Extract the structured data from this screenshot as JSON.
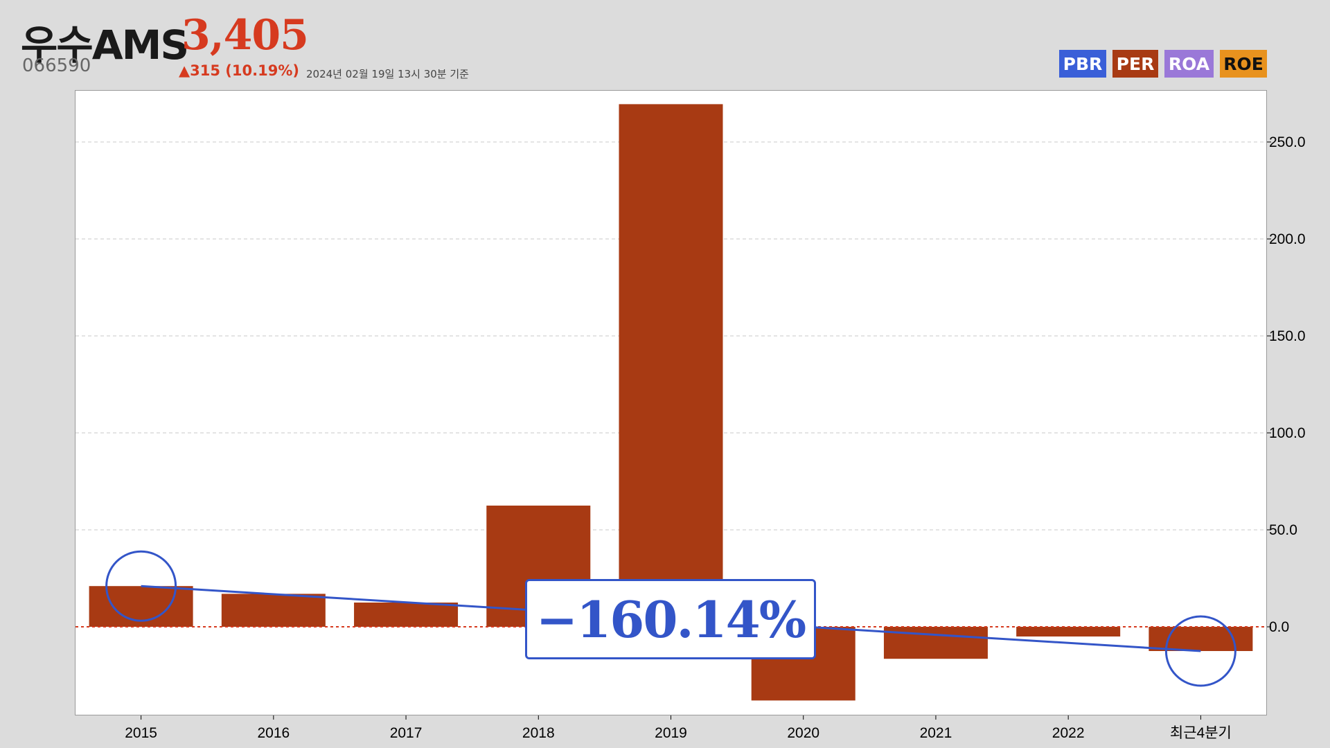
{
  "header": {
    "company": "우수AMS",
    "price": "3,405",
    "code": "066590",
    "change": "▲315 (10.19%)",
    "date": "2024년 02월 19일 13시 30분 기준"
  },
  "legend": [
    {
      "label": "PBR",
      "color": "#3a5fd8"
    },
    {
      "label": "PER",
      "color": "#a83a13"
    },
    {
      "label": "ROA",
      "color": "#9a78d8"
    },
    {
      "label": "ROE",
      "color": "#e8921e"
    }
  ],
  "callout": {
    "text": "−160.14%"
  },
  "colors": {
    "bar": "#a83a13",
    "accent": "#3355c8",
    "zero_line": "#d63a1f"
  },
  "chart_data": {
    "type": "bar",
    "series_name": "PER",
    "categories": [
      "2015",
      "2016",
      "2017",
      "2018",
      "2019",
      "2020",
      "2021",
      "2022",
      "최근4분기"
    ],
    "values": [
      21.0,
      17.0,
      12.5,
      62.5,
      269.5,
      -38.0,
      -16.5,
      -5.0,
      -12.5
    ],
    "ylim": [
      -45,
      275
    ],
    "yticks": [
      0,
      50,
      100,
      150,
      200,
      250
    ],
    "ytick_labels": [
      "0.0",
      "50.0",
      "100.0",
      "150.0",
      "200.0",
      "250.0"
    ],
    "y_axis_side": "right",
    "grid": true,
    "trend_line": {
      "from": "2015",
      "to": "최근4분기",
      "change": "−160.14%"
    }
  }
}
